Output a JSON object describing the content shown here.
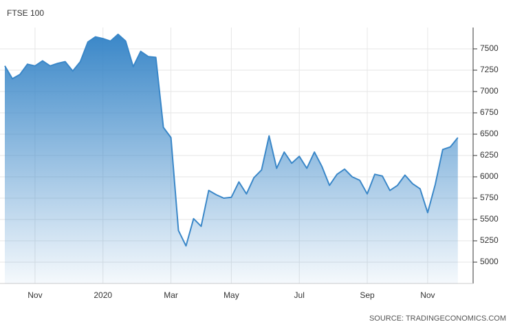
{
  "chart_data": {
    "type": "area",
    "title": "FTSE 100",
    "source": "SOURCE: TRADINGECONOMICS.COM",
    "categories": [
      null,
      null,
      null,
      null,
      "Nov",
      null,
      null,
      null,
      null,
      null,
      null,
      null,
      null,
      "2020",
      null,
      null,
      null,
      null,
      null,
      null,
      null,
      null,
      "Mar",
      null,
      null,
      null,
      null,
      null,
      null,
      null,
      "May",
      null,
      null,
      null,
      null,
      null,
      null,
      null,
      null,
      "Jul",
      null,
      null,
      null,
      null,
      null,
      null,
      null,
      null,
      "Sep",
      null,
      null,
      null,
      null,
      null,
      null,
      null,
      "Nov",
      null,
      null,
      null,
      null
    ],
    "values": [
      7300,
      7150,
      7200,
      7320,
      7300,
      7360,
      7300,
      7330,
      7350,
      7240,
      7350,
      7580,
      7640,
      7620,
      7590,
      7670,
      7590,
      7290,
      7470,
      7410,
      7400,
      6580,
      6460,
      5370,
      5190,
      5510,
      5420,
      5840,
      5790,
      5750,
      5760,
      5940,
      5800,
      5990,
      6080,
      6480,
      6100,
      6290,
      6160,
      6240,
      6100,
      6290,
      6120,
      5900,
      6030,
      6090,
      6000,
      5960,
      5800,
      6030,
      6010,
      5840,
      5900,
      6020,
      5920,
      5860,
      5580,
      5910,
      6320,
      6350,
      6460
    ],
    "color": "#3a87c8",
    "ylim": [
      4750,
      7750
    ],
    "yticks": [
      5000,
      5250,
      5500,
      5750,
      6000,
      6250,
      6500,
      6750,
      7000,
      7250,
      7500
    ],
    "grid": true
  }
}
